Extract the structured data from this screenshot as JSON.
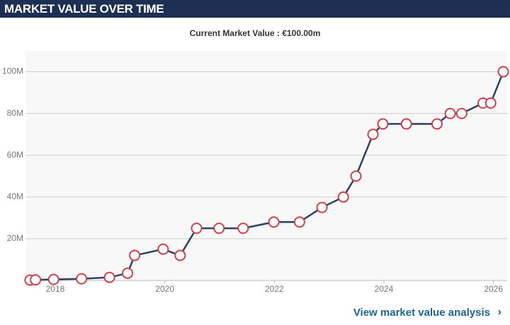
{
  "header": {
    "title": "MARKET VALUE OVER TIME"
  },
  "chart_data": {
    "type": "line",
    "subtitle": "Current Market Value : €100.00m",
    "x": [
      2017.54,
      2017.64,
      2017.97,
      2018.48,
      2018.99,
      2019.32,
      2019.45,
      2019.97,
      2020.28,
      2020.58,
      2020.99,
      2021.43,
      2021.99,
      2022.46,
      2022.87,
      2023.26,
      2023.49,
      2023.8,
      2023.98,
      2024.41,
      2024.97,
      2025.21,
      2025.42,
      2025.81,
      2025.95,
      2026.18
    ],
    "series": [
      {
        "color": "#2b4263",
        "marker_color": "#d0404a",
        "values": [
          0.2,
          0.3,
          0.5,
          0.8,
          1.5,
          3.5,
          12,
          15,
          12,
          25,
          25,
          25,
          28,
          28,
          35,
          40,
          50,
          70,
          75,
          75,
          75,
          80,
          80,
          85,
          85,
          100
        ]
      }
    ],
    "xlim": [
      2017.47,
      2026.25
    ],
    "xticks": [
      2018,
      2020,
      2022,
      2024,
      2026
    ],
    "ylim": [
      0,
      110
    ],
    "yticks": [
      {
        "value": 20,
        "label": "20M"
      },
      {
        "value": 40,
        "label": "40M"
      },
      {
        "value": 60,
        "label": "60M"
      },
      {
        "value": 80,
        "label": "80M"
      },
      {
        "value": 100,
        "label": "100M"
      }
    ],
    "grid": true
  },
  "footer": {
    "link": "View market value analysis"
  }
}
